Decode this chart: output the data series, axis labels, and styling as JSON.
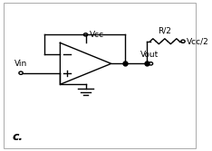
{
  "background_color": "#ffffff",
  "border_color": "#aaaaaa",
  "label_c": "c.",
  "label_vin": "Vin",
  "label_vcc": "Vcc",
  "label_vout": "Vout",
  "label_r2": "R/2",
  "label_vcc2": "Vcc/2",
  "line_color": "#000000",
  "text_color": "#000000",
  "font_size": 6.5,
  "font_size_c": 9,
  "lw": 1.0
}
